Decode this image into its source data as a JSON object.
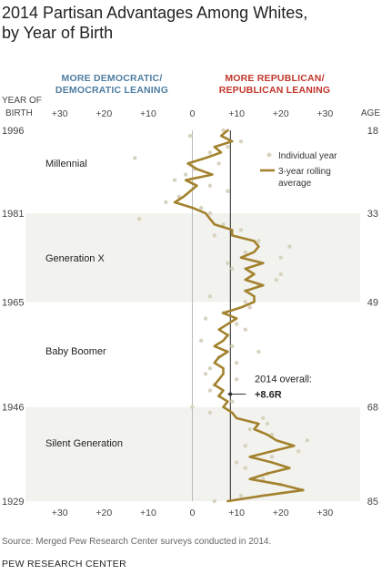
{
  "title_line1": "2014 Partisan Advantages Among Whites,",
  "title_line2": "by Year of Birth",
  "header_dem_line1": "MORE DEMOCRATIC/",
  "header_dem_line2": "DEMOCRATIC LEANING",
  "header_rep_line1": "MORE REPUBLICAN/",
  "header_rep_line2": "REPUBLICAN LEANING",
  "left_axis_title_line1": "YEAR OF",
  "left_axis_title_line2": "BIRTH",
  "right_axis_title": "AGE",
  "source": "Source: Merged Pew Research Center surveys conducted in 2014.",
  "footer": "PEW RESEARCH CENTER",
  "colors": {
    "line": "#a3822e",
    "dots": "#d8d3bf",
    "band": "#f2f2ee",
    "dem": "#4e7ea2",
    "rep": "#c0372b",
    "overall_line": "#222222",
    "zero_line": "#bbbbbb"
  },
  "chart_data": {
    "type": "line",
    "x_ticks": [
      "+30",
      "+20",
      "+10",
      "0",
      "+10",
      "+20",
      "+30"
    ],
    "x_tick_values": [
      -30,
      -20,
      -10,
      0,
      10,
      20,
      30
    ],
    "xlim": [
      -35,
      35
    ],
    "ylim": [
      1929,
      1996
    ],
    "year_ticks": [
      "1996",
      "1981",
      "1965",
      "1946",
      "1929"
    ],
    "year_tick_values": [
      1996,
      1981,
      1965,
      1946,
      1929
    ],
    "age_ticks": [
      "18",
      "33",
      "49",
      "68",
      "85"
    ],
    "generations": [
      {
        "label": "Millennial",
        "from": 1981,
        "to": 1996,
        "shaded": false
      },
      {
        "label": "Generation X",
        "from": 1965,
        "to": 1981,
        "shaded": true
      },
      {
        "label": "Baby Boomer",
        "from": 1946,
        "to": 1965,
        "shaded": false
      },
      {
        "label": "Silent Generation",
        "from": 1929,
        "to": 1946,
        "shaded": true
      }
    ],
    "overall": {
      "label_line1": "2014 overall:",
      "label_line2": "+8.6R",
      "value": 8.6
    },
    "legend": {
      "individual": "Individual year",
      "rolling_line1": "3-year rolling",
      "rolling_line2": "average"
    },
    "series": [
      {
        "name": "3-year rolling average",
        "x": [
          1996,
          1995,
          1994,
          1993,
          1992,
          1991,
          1990,
          1989,
          1988,
          1987,
          1986,
          1985,
          1984,
          1983,
          1982,
          1981,
          1980,
          1979,
          1978,
          1977,
          1976,
          1975,
          1974,
          1973,
          1972,
          1971,
          1970,
          1969,
          1968,
          1967,
          1966,
          1965,
          1964,
          1963,
          1962,
          1961,
          1960,
          1959,
          1958,
          1957,
          1956,
          1955,
          1954,
          1953,
          1952,
          1951,
          1950,
          1949,
          1948,
          1947,
          1946,
          1945,
          1944,
          1943,
          1942,
          1941,
          1940,
          1939,
          1938,
          1937,
          1936,
          1935,
          1934,
          1933,
          1932,
          1931,
          1930,
          1929
        ],
        "y": [
          8,
          6.5,
          9,
          5,
          6.5,
          3,
          -1,
          1,
          4.5,
          -1.5,
          1,
          -0.5,
          -2,
          -4,
          0,
          3,
          4,
          5,
          9,
          9,
          14,
          15,
          14,
          11,
          16,
          12,
          14,
          12,
          16,
          12,
          14,
          14,
          11,
          7,
          10,
          8,
          6,
          8,
          7,
          5,
          8,
          6,
          5,
          7,
          7,
          6,
          5,
          7,
          6,
          8,
          7,
          9,
          10,
          15,
          14,
          17,
          19,
          23,
          18,
          13,
          18,
          22,
          17,
          13,
          20,
          25,
          16,
          8
        ]
      },
      {
        "name": "Individual year",
        "x": [
          1996,
          1995,
          1994,
          1993,
          1992,
          1991,
          1990,
          1989,
          1988,
          1987,
          1986,
          1985,
          1984,
          1983,
          1982,
          1981,
          1980,
          1979,
          1978,
          1977,
          1976,
          1975,
          1974,
          1973,
          1972,
          1971,
          1970,
          1969,
          1968,
          1967,
          1966,
          1965,
          1964,
          1963,
          1962,
          1961,
          1960,
          1959,
          1958,
          1957,
          1956,
          1955,
          1954,
          1953,
          1952,
          1951,
          1950,
          1949,
          1948,
          1947,
          1946,
          1945,
          1944,
          1943,
          1942,
          1941,
          1940,
          1939,
          1938,
          1937,
          1936,
          1935,
          1934,
          1933,
          1932,
          1931,
          1930,
          1929
        ],
        "y": [
          7,
          -0.5,
          11,
          8,
          4,
          -13,
          6,
          0.5,
          -1.5,
          -4,
          4,
          8,
          -3,
          -6,
          2,
          4,
          -12,
          7,
          11,
          5,
          15,
          22,
          12,
          20,
          8,
          9,
          20,
          19,
          15,
          12,
          4,
          12,
          13,
          7,
          3,
          10,
          12,
          8,
          2,
          9,
          15,
          6,
          10,
          4,
          3,
          10,
          5,
          4,
          6,
          9,
          0,
          4,
          16,
          17,
          13,
          18,
          26,
          12,
          24,
          18,
          10,
          12,
          17,
          16,
          20,
          25,
          11,
          5
        ]
      }
    ]
  }
}
